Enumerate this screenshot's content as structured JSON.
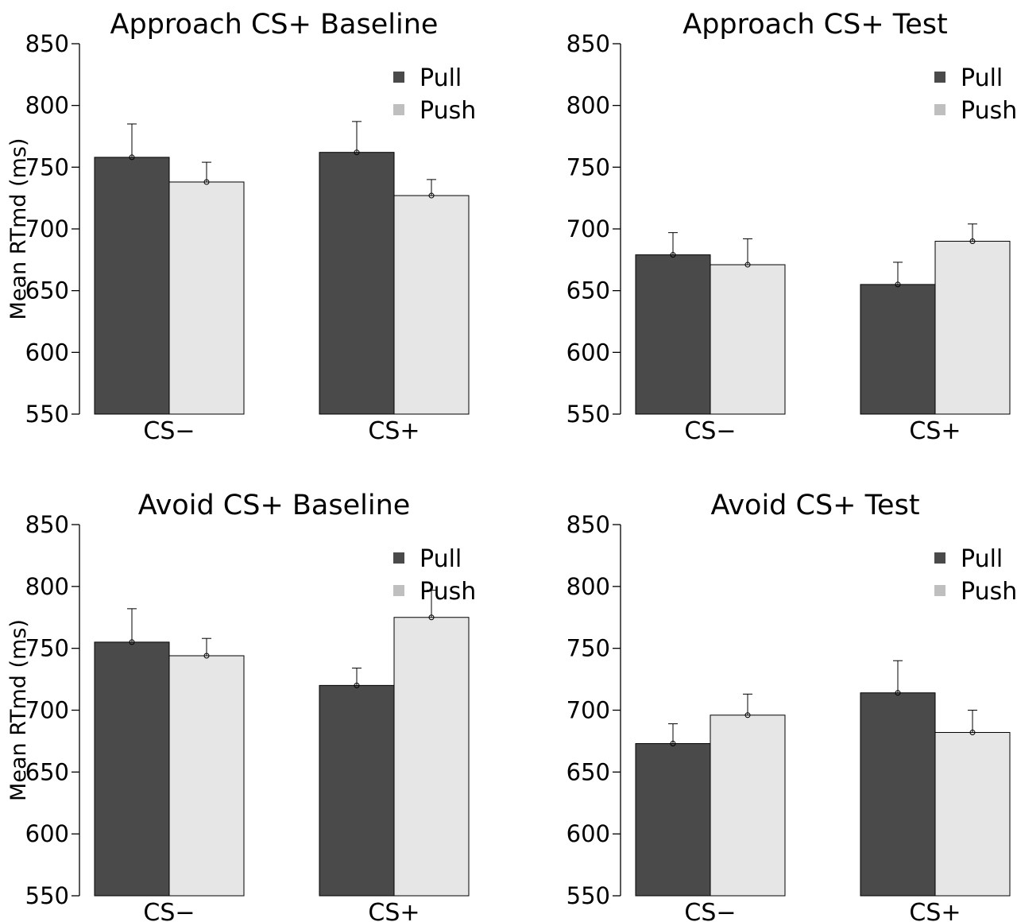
{
  "colors": {
    "pull": "#4a4a4a",
    "push": "#e6e6e6",
    "legend_push": "#bfbfbf",
    "axis": "#000000"
  },
  "chart_data": [
    {
      "type": "bar",
      "title": "Approach CS+ Baseline",
      "ylabel": "Mean RTmd (ms)",
      "ylim": [
        550,
        850
      ],
      "yticks": [
        "550",
        "600",
        "650",
        "700",
        "750",
        "800",
        "850"
      ],
      "categories": [
        "CS−",
        "CS+"
      ],
      "legend": [
        "Pull",
        "Push"
      ],
      "legend_position": "top-right",
      "grid": false,
      "series": [
        {
          "name": "Pull",
          "values": [
            758,
            762
          ],
          "error_upper": [
            785,
            787
          ]
        },
        {
          "name": "Push",
          "values": [
            738,
            727
          ],
          "error_upper": [
            754,
            740
          ]
        }
      ]
    },
    {
      "type": "bar",
      "title": "Approach CS+ Test",
      "ylabel": "",
      "ylim": [
        550,
        850
      ],
      "yticks": [
        "550",
        "600",
        "650",
        "700",
        "750",
        "800",
        "850"
      ],
      "categories": [
        "CS−",
        "CS+"
      ],
      "legend": [
        "Pull",
        "Push"
      ],
      "legend_position": "top-right",
      "grid": false,
      "series": [
        {
          "name": "Pull",
          "values": [
            679,
            655
          ],
          "error_upper": [
            697,
            673
          ]
        },
        {
          "name": "Push",
          "values": [
            671,
            690
          ],
          "error_upper": [
            692,
            704
          ]
        }
      ]
    },
    {
      "type": "bar",
      "title": "Avoid CS+ Baseline",
      "ylabel": "Mean RTmd (ms)",
      "ylim": [
        550,
        850
      ],
      "yticks": [
        "550",
        "600",
        "650",
        "700",
        "750",
        "800",
        "850"
      ],
      "categories": [
        "CS−",
        "CS+"
      ],
      "legend": [
        "Pull",
        "Push"
      ],
      "legend_position": "top-right",
      "grid": false,
      "series": [
        {
          "name": "Pull",
          "values": [
            755,
            720
          ],
          "error_upper": [
            782,
            734
          ]
        },
        {
          "name": "Push",
          "values": [
            744,
            775
          ],
          "error_upper": [
            758,
            797
          ]
        }
      ]
    },
    {
      "type": "bar",
      "title": "Avoid CS+ Test",
      "ylabel": "",
      "ylim": [
        550,
        850
      ],
      "yticks": [
        "550",
        "600",
        "650",
        "700",
        "750",
        "800",
        "850"
      ],
      "categories": [
        "CS−",
        "CS+"
      ],
      "legend": [
        "Pull",
        "Push"
      ],
      "legend_position": "top-right",
      "grid": false,
      "series": [
        {
          "name": "Pull",
          "values": [
            673,
            714
          ],
          "error_upper": [
            689,
            740
          ]
        },
        {
          "name": "Push",
          "values": [
            696,
            682
          ],
          "error_upper": [
            713,
            700
          ]
        }
      ]
    }
  ]
}
